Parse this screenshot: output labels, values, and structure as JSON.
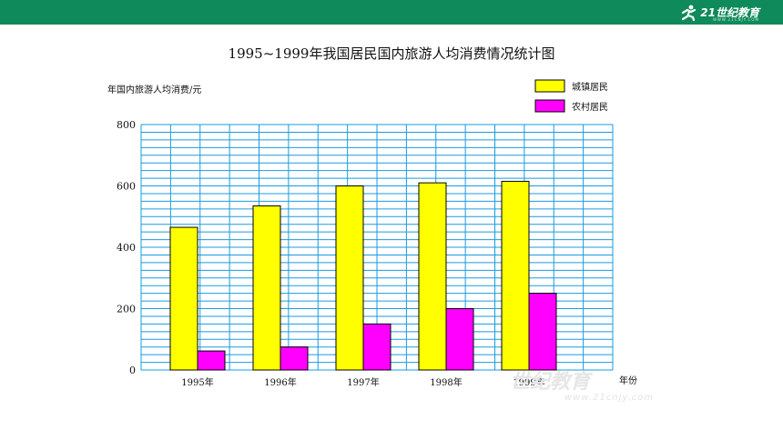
{
  "header": {
    "logo_text": "21世纪教育",
    "logo_sub": "WWW.21CNJY.COM",
    "watermark": "世纪教育",
    "watermark_url": "www.21cnjy.com"
  },
  "chart_data": {
    "type": "bar",
    "title": "1995~1999年我国居民国内旅游人均消费情况统计图",
    "ylabel": "年国内旅游人均消费/元",
    "xlabel": "年份",
    "categories": [
      "1995年",
      "1996年",
      "1997年",
      "1998年",
      "1999年"
    ],
    "series": [
      {
        "name": "城镇居民",
        "color": "#ffff00",
        "values": [
          465,
          535,
          600,
          610,
          615
        ]
      },
      {
        "name": "农村居民",
        "color": "#ff00ff",
        "values": [
          62,
          75,
          150,
          200,
          250
        ]
      }
    ],
    "ylim": [
      0,
      800
    ],
    "yticks": [
      0,
      200,
      400,
      600,
      800
    ],
    "grid": true,
    "grid_color": "#1a9be0",
    "legend": "top-right"
  }
}
